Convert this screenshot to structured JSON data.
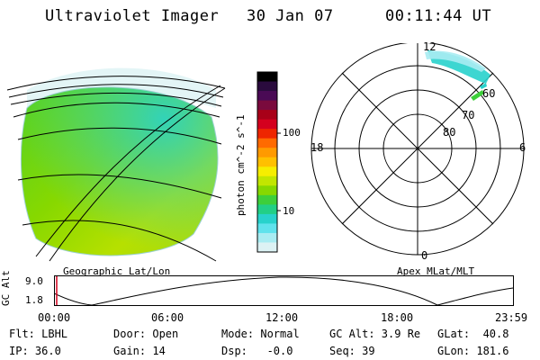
{
  "header": {
    "title": "Ultraviolet Imager",
    "date": "30 Jan 07",
    "time": "00:11:44 UT"
  },
  "panels": {
    "left_caption": "Geographic Lat/Lon",
    "right_caption": "Apex MLat/MLT"
  },
  "colorbar": {
    "label": "photon cm^-2 s^-1",
    "ticks": [
      "100",
      "10"
    ],
    "colors": [
      "#000000",
      "#2a0b3d",
      "#4a0a55",
      "#7a0a3d",
      "#a80018",
      "#d4001e",
      "#ee2600",
      "#ff6a00",
      "#ff9a00",
      "#ffc000",
      "#f6ee00",
      "#c2e600",
      "#86d800",
      "#3dcf3a",
      "#22cf86",
      "#28d2cc",
      "#5fe2ec",
      "#a8ecf2",
      "#dcf2f4"
    ]
  },
  "polar": {
    "mlt_labels": {
      "top": "12",
      "left": "18",
      "right": "6",
      "bottom": "0"
    },
    "lat_labels": [
      "80",
      "70",
      "60"
    ]
  },
  "timeline": {
    "ylabel": "GC Alt",
    "y_ticks": [
      "9.0",
      "1.8"
    ],
    "x_ticks": [
      "00:00",
      "06:00",
      "12:00",
      "18:00",
      "23:59"
    ]
  },
  "info": {
    "row1": {
      "flt": "Flt: LBHL",
      "door": "Door: Open",
      "mode": "Mode: Normal",
      "gcalt": "GC Alt: 3.9 Re",
      "glat": "GLat:  40.8"
    },
    "row2": {
      "ip": "IP: 36.0",
      "gain": "Gain: 14",
      "dsp": "Dsp:   -0.0",
      "seq": "Seq: 39",
      "glon": "GLon: 181.6"
    }
  },
  "accent": {
    "red_marker": "#d4001e"
  }
}
